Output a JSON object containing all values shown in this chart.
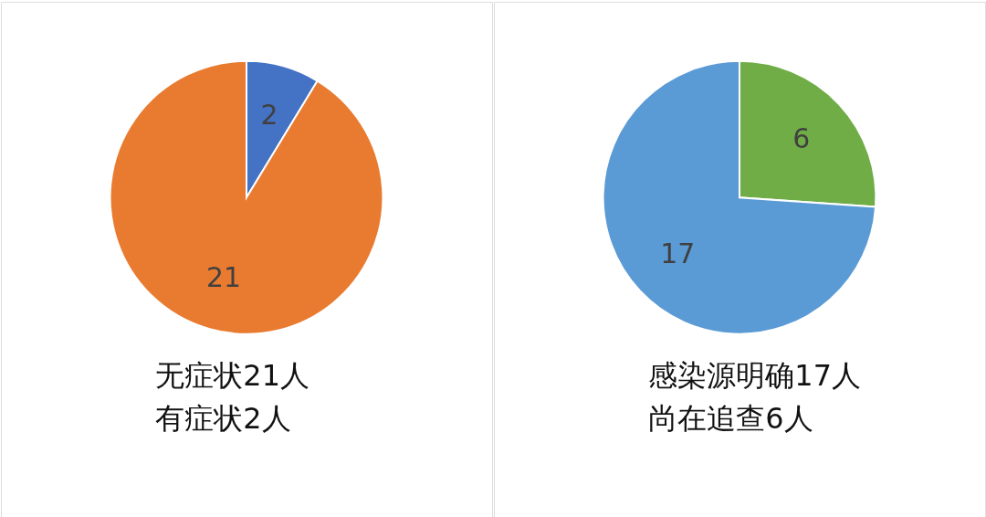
{
  "chart_data": [
    {
      "type": "pie",
      "categories": [
        null,
        null
      ],
      "values": [
        2,
        21
      ],
      "colors": [
        "#4472c4",
        "#e97b30"
      ],
      "data_labels": true,
      "annotations": [
        "无症状21人",
        "有症状2人"
      ]
    },
    {
      "type": "pie",
      "categories": [
        null,
        null
      ],
      "values": [
        6,
        17
      ],
      "colors": [
        "#70ad47",
        "#5b9bd5"
      ],
      "data_labels": true,
      "annotations": [
        "感染源明确17人",
        "尚在追查6人"
      ]
    }
  ]
}
